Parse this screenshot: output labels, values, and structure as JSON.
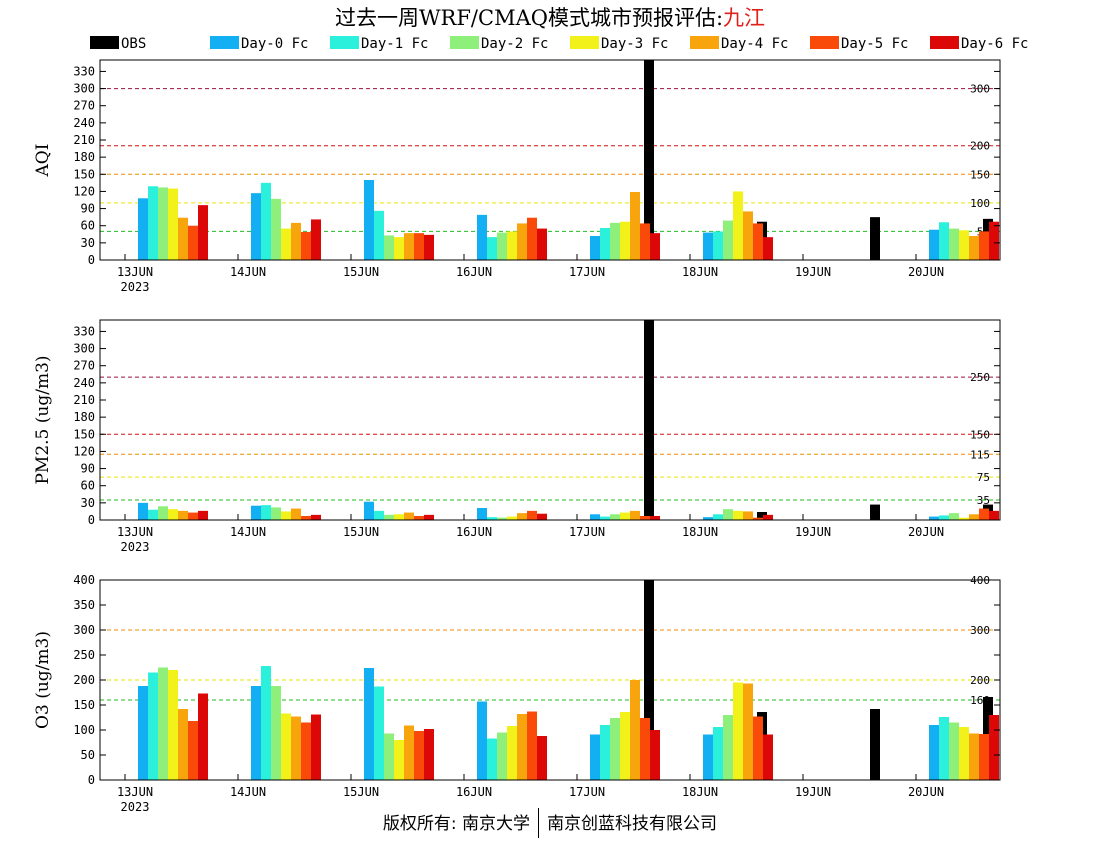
{
  "title": {
    "prefix": "过去一周WRF/CMAQ模式城市预报评估:",
    "city": "九江"
  },
  "footer": {
    "left": "版权所有: 南京大学",
    "right": "南京创蓝科技有限公司"
  },
  "legend": [
    {
      "name": "OBS",
      "color": "#000000"
    },
    {
      "name": "Day-0 Fc",
      "color": "#12b0f2"
    },
    {
      "name": "Day-1 Fc",
      "color": "#2af0dc"
    },
    {
      "name": "Day-2 Fc",
      "color": "#8ef07a"
    },
    {
      "name": "Day-3 Fc",
      "color": "#f2f21a"
    },
    {
      "name": "Day-4 Fc",
      "color": "#f8a40c"
    },
    {
      "name": "Day-5 Fc",
      "color": "#fa4a0a"
    },
    {
      "name": "Day-6 Fc",
      "color": "#dc0808"
    }
  ],
  "chart_data": [
    {
      "type": "bar",
      "ylabel": "AQI",
      "ylim": [
        0,
        350
      ],
      "yticks": [
        0,
        30,
        60,
        90,
        120,
        150,
        180,
        210,
        240,
        270,
        300,
        330
      ],
      "categories": [
        "13JUN",
        "14JUN",
        "15JUN",
        "16JUN",
        "17JUN",
        "18JUN",
        "19JUN",
        "20JUN"
      ],
      "year_label": "2023",
      "ref_lines": [
        {
          "value": 50,
          "label": "50",
          "color": "#22bb22"
        },
        {
          "value": 100,
          "label": "100",
          "color": "#e6e600"
        },
        {
          "value": 150,
          "label": "150",
          "color": "#f08c00"
        },
        {
          "value": 200,
          "label": "200",
          "color": "#d01010"
        },
        {
          "value": 300,
          "label": "300",
          "color": "#9a1040"
        }
      ],
      "series": [
        {
          "values": [
            null,
            null,
            null,
            null,
            350,
            67,
            75,
            72
          ]
        },
        {
          "values": [
            108,
            117,
            140,
            79,
            42,
            48,
            null,
            53
          ]
        },
        {
          "values": [
            129,
            135,
            86,
            40,
            56,
            50,
            null,
            66
          ]
        },
        {
          "values": [
            127,
            107,
            43,
            48,
            65,
            69,
            null,
            55
          ]
        },
        {
          "values": [
            125,
            55,
            40,
            50,
            67,
            120,
            null,
            52
          ]
        },
        {
          "values": [
            74,
            65,
            47,
            64,
            119,
            85,
            null,
            42
          ]
        },
        {
          "values": [
            60,
            49,
            47,
            74,
            64,
            64,
            null,
            50
          ]
        },
        {
          "values": [
            96,
            71,
            44,
            55,
            47,
            40,
            null,
            67
          ]
        }
      ]
    },
    {
      "type": "bar",
      "ylabel": "PM2.5 (ug/m3)",
      "ylim": [
        0,
        350
      ],
      "yticks": [
        0,
        30,
        60,
        90,
        120,
        150,
        180,
        210,
        240,
        270,
        300,
        330
      ],
      "categories": [
        "13JUN",
        "14JUN",
        "15JUN",
        "16JUN",
        "17JUN",
        "18JUN",
        "19JUN",
        "20JUN"
      ],
      "year_label": "2023",
      "ref_lines": [
        {
          "value": 35,
          "label": "35",
          "color": "#22bb22"
        },
        {
          "value": 75,
          "label": "75",
          "color": "#e6e600"
        },
        {
          "value": 115,
          "label": "115",
          "color": "#f08c00"
        },
        {
          "value": 150,
          "label": "150",
          "color": "#d01010"
        },
        {
          "value": 250,
          "label": "250",
          "color": "#9a1040"
        }
      ],
      "series": [
        {
          "values": [
            null,
            null,
            null,
            null,
            350,
            14,
            27,
            27
          ]
        },
        {
          "values": [
            30,
            25,
            32,
            21,
            10,
            5,
            null,
            6
          ]
        },
        {
          "values": [
            18,
            26,
            16,
            5,
            6,
            10,
            null,
            8
          ]
        },
        {
          "values": [
            24,
            22,
            9,
            4,
            10,
            19,
            null,
            12
          ]
        },
        {
          "values": [
            19,
            15,
            10,
            6,
            13,
            16,
            null,
            4
          ]
        },
        {
          "values": [
            16,
            20,
            13,
            12,
            16,
            15,
            null,
            10
          ]
        },
        {
          "values": [
            13,
            7,
            7,
            16,
            7,
            4,
            null,
            20
          ]
        },
        {
          "values": [
            16,
            9,
            9,
            11,
            7,
            9,
            null,
            16
          ]
        }
      ]
    },
    {
      "type": "bar",
      "ylabel": "O3 (ug/m3)",
      "ylim": [
        0,
        400
      ],
      "yticks": [
        0,
        50,
        100,
        150,
        200,
        250,
        300,
        350,
        400
      ],
      "categories": [
        "13JUN",
        "14JUN",
        "15JUN",
        "16JUN",
        "17JUN",
        "18JUN",
        "19JUN",
        "20JUN"
      ],
      "year_label": "2023",
      "ref_lines": [
        {
          "value": 160,
          "label": "160",
          "color": "#22bb22"
        },
        {
          "value": 200,
          "label": "200",
          "color": "#e6e600"
        },
        {
          "value": 300,
          "label": "300",
          "color": "#f08c00"
        },
        {
          "value": 400,
          "label": "400",
          "color": "#d01010"
        }
      ],
      "series": [
        {
          "values": [
            null,
            null,
            null,
            null,
            400,
            136,
            142,
            166
          ]
        },
        {
          "values": [
            188,
            188,
            224,
            157,
            91,
            91,
            null,
            110
          ]
        },
        {
          "values": [
            215,
            228,
            187,
            83,
            110,
            106,
            null,
            126
          ]
        },
        {
          "values": [
            225,
            188,
            93,
            95,
            124,
            130,
            null,
            115
          ]
        },
        {
          "values": [
            220,
            133,
            80,
            108,
            136,
            195,
            null,
            106
          ]
        },
        {
          "values": [
            142,
            127,
            109,
            132,
            200,
            193,
            null,
            93
          ]
        },
        {
          "values": [
            118,
            115,
            98,
            137,
            124,
            127,
            null,
            92
          ]
        },
        {
          "values": [
            173,
            131,
            102,
            88,
            100,
            91,
            null,
            130
          ]
        }
      ]
    }
  ]
}
